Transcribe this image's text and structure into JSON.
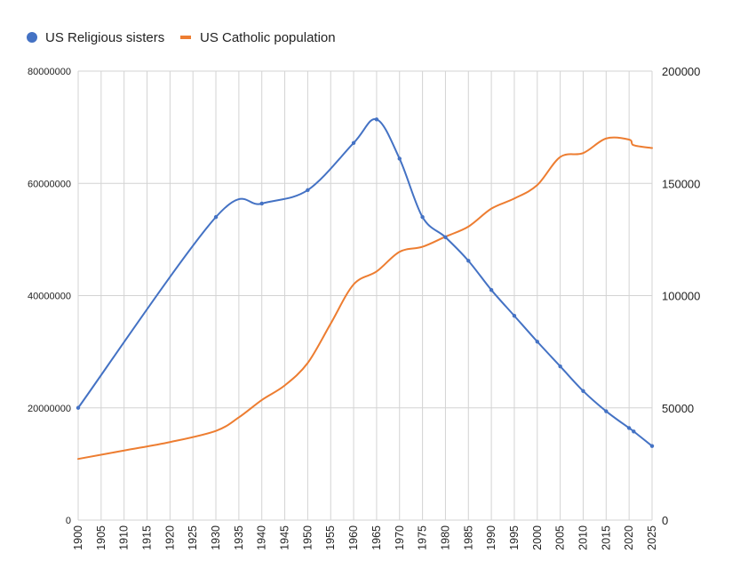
{
  "chart_data": {
    "type": "line",
    "title": "",
    "xlabel": "",
    "ylabel": "",
    "legend_position": "top-left",
    "grid": true,
    "x_ticks": [
      1900,
      1905,
      1910,
      1915,
      1920,
      1925,
      1930,
      1935,
      1940,
      1945,
      1950,
      1955,
      1960,
      1965,
      1970,
      1975,
      1980,
      1985,
      1990,
      1995,
      2000,
      2005,
      2010,
      2015,
      2020,
      2025
    ],
    "xlim": [
      1900,
      2025
    ],
    "y_left": {
      "ticks": [
        0,
        20000000,
        40000000,
        60000000,
        80000000
      ],
      "tick_labels": [
        "0",
        "20000000",
        "40000000",
        "60000000",
        "80000000"
      ],
      "lim": [
        0,
        80000000
      ]
    },
    "y_right": {
      "ticks": [
        0,
        50000,
        100000,
        150000,
        200000
      ],
      "tick_labels": [
        "0",
        "50000",
        "100000",
        "150000",
        "200000"
      ],
      "lim": [
        0,
        200000
      ]
    },
    "series": [
      {
        "name": "US Religious sisters",
        "axis": "right",
        "color": "#4472C4",
        "markers": true,
        "points": [
          [
            1900,
            50000
          ],
          [
            1930,
            135000
          ],
          [
            1940,
            141000
          ],
          [
            1950,
            147000
          ],
          [
            1960,
            168000
          ],
          [
            1965,
            178500
          ],
          [
            1970,
            161000
          ],
          [
            1975,
            135000
          ],
          [
            1980,
            126000
          ],
          [
            1985,
            115500
          ],
          [
            1990,
            102500
          ],
          [
            1995,
            91000
          ],
          [
            2000,
            79500
          ],
          [
            2005,
            68500
          ],
          [
            2010,
            57500
          ],
          [
            2015,
            48500
          ],
          [
            2020,
            41000
          ],
          [
            2021,
            39500
          ],
          [
            2025,
            33000
          ]
        ]
      },
      {
        "name": "US Catholic population",
        "axis": "left",
        "color": "#ED7D31",
        "markers": false,
        "points": [
          [
            1900,
            10900000
          ],
          [
            1910,
            12400000
          ],
          [
            1920,
            13900000
          ],
          [
            1930,
            15900000
          ],
          [
            1935,
            18300000
          ],
          [
            1940,
            21400000
          ],
          [
            1945,
            24000000
          ],
          [
            1950,
            28000000
          ],
          [
            1955,
            35000000
          ],
          [
            1960,
            42000000
          ],
          [
            1965,
            44300000
          ],
          [
            1970,
            47800000
          ],
          [
            1975,
            48700000
          ],
          [
            1980,
            50500000
          ],
          [
            1985,
            52300000
          ],
          [
            1990,
            55500000
          ],
          [
            1995,
            57300000
          ],
          [
            2000,
            59700000
          ],
          [
            2005,
            64700000
          ],
          [
            2010,
            65400000
          ],
          [
            2015,
            68000000
          ],
          [
            2020,
            67800000
          ],
          [
            2021,
            66800000
          ],
          [
            2025,
            66300000
          ]
        ]
      }
    ]
  }
}
